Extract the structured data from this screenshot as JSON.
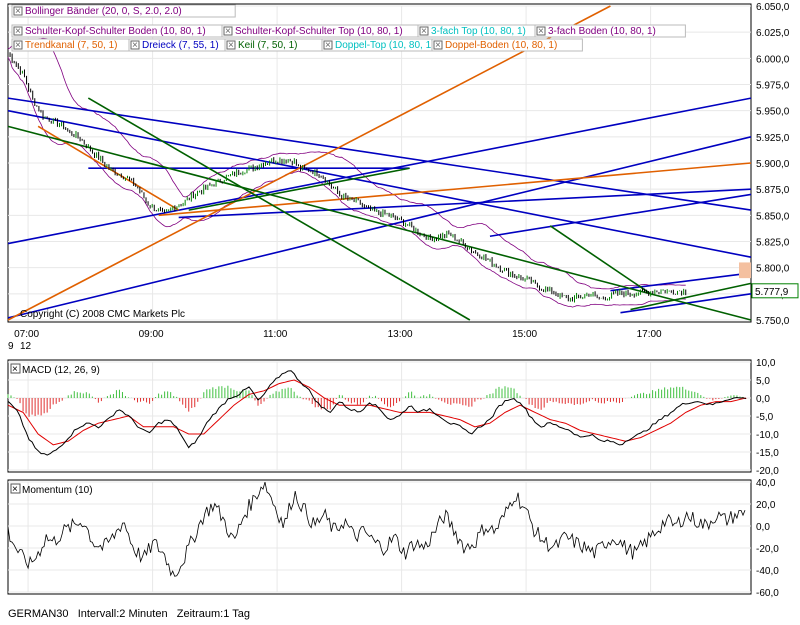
{
  "chart_data": [
    {
      "type": "line",
      "panel": "price",
      "title": "Bollinger Bänder (20, 0, S, 2.0, 2.0)",
      "copyright": "Copyright (C) 2008 CMC Markets Plc",
      "x_ticks": [
        "07:00",
        "09:00",
        "11:00",
        "13:00",
        "15:00",
        "17:00"
      ],
      "x_sub": [
        "9",
        "12"
      ],
      "ylim": [
        5750,
        6050
      ],
      "y_ticks": [
        "5.750,0",
        "5.775,0",
        "5.800,0",
        "5.825,0",
        "5.850,0",
        "5.875,0",
        "5.900,0",
        "5.925,0",
        "5.950,0",
        "5.975,0",
        "6.000,0",
        "6.025,0",
        "6.050,0"
      ],
      "last_value_label": "5.777,9",
      "last_value": 5777.9,
      "legend": [
        {
          "name": "Bollinger Bänder (20, 0, S, 2.0, 2.0)",
          "color": "#800080"
        },
        {
          "name": "Schulter-Kopf-Schulter Boden (10, 80, 1)",
          "color": "#800080"
        },
        {
          "name": "Schulter-Kopf-Schulter Top (10, 80, 1)",
          "color": "#800080"
        },
        {
          "name": "3-fach Top (10, 80, 1)",
          "color": "#00c0c0"
        },
        {
          "name": "3-fach Boden (10, 80, 1)",
          "color": "#800080"
        },
        {
          "name": "Trendkanal (7, 50, 1)",
          "color": "#e06000"
        },
        {
          "name": "Dreieck (7, 55, 1)",
          "color": "#0000c0"
        },
        {
          "name": "Keil (7, 50, 1)",
          "color": "#006000"
        },
        {
          "name": "Doppel-Top (10, 80, 1)",
          "color": "#00c0c0"
        },
        {
          "name": "Doppel-Boden (10, 80, 1)",
          "color": "#e06000"
        }
      ],
      "price_anchors": [
        [
          0,
          6005
        ],
        [
          15,
          5985
        ],
        [
          25,
          5960
        ],
        [
          35,
          5945
        ],
        [
          45,
          5940
        ],
        [
          55,
          5935
        ],
        [
          60,
          5930
        ],
        [
          70,
          5925
        ],
        [
          80,
          5915
        ],
        [
          90,
          5905
        ],
        [
          100,
          5895
        ],
        [
          110,
          5890
        ],
        [
          120,
          5885
        ],
        [
          130,
          5875
        ],
        [
          140,
          5860
        ],
        [
          150,
          5855
        ],
        [
          155,
          5850
        ],
        [
          165,
          5858
        ],
        [
          175,
          5862
        ],
        [
          185,
          5870
        ],
        [
          195,
          5875
        ],
        [
          205,
          5880
        ],
        [
          215,
          5885
        ],
        [
          225,
          5890
        ],
        [
          235,
          5893
        ],
        [
          245,
          5896
        ],
        [
          255,
          5900
        ],
        [
          265,
          5903
        ],
        [
          275,
          5903
        ],
        [
          285,
          5902
        ],
        [
          290,
          5895
        ],
        [
          300,
          5893
        ],
        [
          310,
          5890
        ],
        [
          320,
          5880
        ],
        [
          330,
          5870
        ],
        [
          340,
          5865
        ],
        [
          350,
          5862
        ],
        [
          355,
          5857
        ],
        [
          360,
          5855
        ],
        [
          370,
          5852
        ],
        [
          380,
          5850
        ],
        [
          390,
          5845
        ],
        [
          400,
          5840
        ],
        [
          410,
          5833
        ],
        [
          420,
          5828
        ],
        [
          430,
          5830
        ],
        [
          440,
          5832
        ],
        [
          450,
          5825
        ],
        [
          460,
          5818
        ],
        [
          470,
          5812
        ],
        [
          480,
          5806
        ],
        [
          490,
          5800
        ],
        [
          500,
          5795
        ],
        [
          510,
          5790
        ],
        [
          520,
          5788
        ],
        [
          530,
          5780
        ],
        [
          540,
          5778
        ],
        [
          550,
          5773
        ],
        [
          560,
          5770
        ],
        [
          570,
          5772
        ],
        [
          580,
          5775
        ],
        [
          590,
          5770
        ],
        [
          600,
          5773
        ],
        [
          610,
          5776
        ],
        [
          620,
          5775
        ],
        [
          630,
          5776
        ],
        [
          640,
          5777
        ],
        [
          650,
          5778
        ],
        [
          660,
          5777
        ],
        [
          670,
          5778
        ],
        [
          675,
          5778
        ]
      ],
      "patterns": [
        {
          "color": "#0000c0",
          "from": [
            0,
            5962
          ],
          "to": [
            740,
            5855
          ]
        },
        {
          "color": "#0000c0",
          "from": [
            0,
            5823
          ],
          "to": [
            740,
            5962
          ]
        },
        {
          "color": "#0000c0",
          "from": [
            0,
            5752
          ],
          "to": [
            740,
            5925
          ]
        },
        {
          "color": "#0000c0",
          "from": [
            0,
            5950
          ],
          "to": [
            740,
            5810
          ]
        },
        {
          "color": "#0000c0",
          "from": [
            170,
            5848
          ],
          "to": [
            740,
            5875
          ]
        },
        {
          "color": "#0000c0",
          "from": [
            80,
            5895
          ],
          "to": [
            400,
            5895
          ]
        },
        {
          "color": "#0000c0",
          "from": [
            480,
            5830
          ],
          "to": [
            740,
            5870
          ]
        },
        {
          "color": "#0000c0",
          "from": [
            600,
            5778
          ],
          "to": [
            740,
            5795
          ]
        },
        {
          "color": "#0000c0",
          "from": [
            610,
            5757
          ],
          "to": [
            740,
            5775
          ]
        },
        {
          "color": "#e06000",
          "from": [
            0,
            5750
          ],
          "to": [
            600,
            6050
          ]
        },
        {
          "color": "#e06000",
          "from": [
            150,
            5850
          ],
          "to": [
            740,
            5900
          ]
        },
        {
          "color": "#e06000",
          "from": [
            30,
            5935
          ],
          "to": [
            170,
            5855
          ]
        },
        {
          "color": "#006000",
          "from": [
            0,
            5935
          ],
          "to": [
            740,
            5750
          ]
        },
        {
          "color": "#006000",
          "from": [
            80,
            5962
          ],
          "to": [
            460,
            5750
          ]
        },
        {
          "color": "#006000",
          "from": [
            180,
            5855
          ],
          "to": [
            400,
            5895
          ]
        },
        {
          "color": "#006000",
          "from": [
            540,
            5840
          ],
          "to": [
            640,
            5775
          ]
        },
        {
          "color": "#006000",
          "from": [
            620,
            5760
          ],
          "to": [
            740,
            5785
          ]
        }
      ]
    },
    {
      "type": "line",
      "panel": "macd",
      "title": "MACD (12, 26, 9)",
      "ylim": [
        -20,
        10
      ],
      "y_ticks": [
        "10,0",
        "5,0",
        "0,0",
        "-5,0",
        "-10,0",
        "-15,0",
        "-20,0"
      ],
      "macd_anchors": [
        [
          0,
          -1
        ],
        [
          10,
          -4
        ],
        [
          20,
          -11
        ],
        [
          30,
          -15
        ],
        [
          40,
          -16
        ],
        [
          50,
          -14
        ],
        [
          60,
          -11
        ],
        [
          70,
          -8
        ],
        [
          80,
          -7
        ],
        [
          90,
          -8
        ],
        [
          100,
          -6
        ],
        [
          110,
          -3
        ],
        [
          120,
          -5
        ],
        [
          130,
          -8
        ],
        [
          140,
          -10
        ],
        [
          150,
          -7
        ],
        [
          160,
          -6
        ],
        [
          170,
          -9
        ],
        [
          180,
          -14
        ],
        [
          190,
          -11
        ],
        [
          200,
          -6
        ],
        [
          210,
          -3
        ],
        [
          220,
          0
        ],
        [
          230,
          1
        ],
        [
          240,
          3
        ],
        [
          250,
          -1
        ],
        [
          260,
          3
        ],
        [
          270,
          6
        ],
        [
          280,
          8
        ],
        [
          290,
          5
        ],
        [
          300,
          2
        ],
        [
          310,
          -2
        ],
        [
          320,
          -4
        ],
        [
          330,
          -1
        ],
        [
          340,
          -3
        ],
        [
          350,
          -4
        ],
        [
          360,
          -1
        ],
        [
          370,
          -3
        ],
        [
          380,
          -6
        ],
        [
          390,
          -5
        ],
        [
          400,
          -2
        ],
        [
          410,
          -4
        ],
        [
          420,
          -3
        ],
        [
          430,
          -5
        ],
        [
          440,
          -7
        ],
        [
          450,
          -8
        ],
        [
          460,
          -10
        ],
        [
          470,
          -8
        ],
        [
          480,
          -6
        ],
        [
          490,
          -2
        ],
        [
          500,
          0
        ],
        [
          510,
          -1
        ],
        [
          520,
          -5
        ],
        [
          530,
          -8
        ],
        [
          540,
          -7
        ],
        [
          550,
          -8
        ],
        [
          560,
          -9
        ],
        [
          570,
          -11
        ],
        [
          580,
          -10
        ],
        [
          590,
          -12
        ],
        [
          600,
          -12
        ],
        [
          610,
          -13
        ],
        [
          620,
          -11
        ],
        [
          630,
          -10
        ],
        [
          640,
          -8
        ],
        [
          650,
          -6
        ],
        [
          660,
          -4
        ],
        [
          670,
          -2
        ],
        [
          680,
          -1
        ],
        [
          690,
          -1
        ],
        [
          700,
          -2
        ],
        [
          710,
          -1
        ],
        [
          720,
          0
        ],
        [
          735,
          0
        ]
      ],
      "signal_anchors": [
        [
          0,
          -2
        ],
        [
          15,
          -4
        ],
        [
          30,
          -10
        ],
        [
          45,
          -13
        ],
        [
          60,
          -12
        ],
        [
          75,
          -9
        ],
        [
          90,
          -7
        ],
        [
          105,
          -6
        ],
        [
          120,
          -5
        ],
        [
          135,
          -8
        ],
        [
          150,
          -8
        ],
        [
          165,
          -8
        ],
        [
          180,
          -10
        ],
        [
          195,
          -10
        ],
        [
          210,
          -6
        ],
        [
          225,
          -2
        ],
        [
          240,
          1
        ],
        [
          255,
          2
        ],
        [
          270,
          4
        ],
        [
          285,
          5
        ],
        [
          300,
          3
        ],
        [
          315,
          0
        ],
        [
          330,
          -2
        ],
        [
          345,
          -2
        ],
        [
          360,
          -2
        ],
        [
          375,
          -3
        ],
        [
          390,
          -4
        ],
        [
          405,
          -4
        ],
        [
          420,
          -4
        ],
        [
          435,
          -5
        ],
        [
          450,
          -6
        ],
        [
          465,
          -8
        ],
        [
          480,
          -7
        ],
        [
          495,
          -4
        ],
        [
          510,
          -2
        ],
        [
          525,
          -4
        ],
        [
          540,
          -6
        ],
        [
          555,
          -7
        ],
        [
          570,
          -9
        ],
        [
          585,
          -10
        ],
        [
          600,
          -11
        ],
        [
          615,
          -12
        ],
        [
          630,
          -11
        ],
        [
          645,
          -9
        ],
        [
          660,
          -7
        ],
        [
          675,
          -4
        ],
        [
          690,
          -2
        ],
        [
          705,
          -1
        ],
        [
          720,
          -1
        ],
        [
          735,
          0
        ]
      ]
    },
    {
      "type": "line",
      "panel": "momentum",
      "title": "Momentum (10)",
      "ylim": [
        -60,
        40
      ],
      "y_ticks": [
        "40,0",
        "20,0",
        "0,0",
        "-20,0",
        "-40,0",
        "-60,0"
      ],
      "anchors": [
        [
          0,
          -5
        ],
        [
          8,
          -20
        ],
        [
          15,
          -30
        ],
        [
          22,
          -35
        ],
        [
          30,
          -25
        ],
        [
          38,
          -10
        ],
        [
          45,
          -15
        ],
        [
          55,
          -5
        ],
        [
          65,
          0
        ],
        [
          75,
          5
        ],
        [
          85,
          -15
        ],
        [
          95,
          -20
        ],
        [
          105,
          -10
        ],
        [
          115,
          5
        ],
        [
          125,
          -20
        ],
        [
          135,
          -30
        ],
        [
          145,
          -15
        ],
        [
          155,
          -25
        ],
        [
          165,
          -45
        ],
        [
          175,
          -30
        ],
        [
          185,
          -10
        ],
        [
          195,
          10
        ],
        [
          205,
          20
        ],
        [
          215,
          5
        ],
        [
          225,
          -15
        ],
        [
          235,
          10
        ],
        [
          245,
          25
        ],
        [
          255,
          40
        ],
        [
          265,
          20
        ],
        [
          275,
          0
        ],
        [
          285,
          30
        ],
        [
          295,
          15
        ],
        [
          305,
          0
        ],
        [
          315,
          10
        ],
        [
          325,
          -5
        ],
        [
          335,
          5
        ],
        [
          345,
          -10
        ],
        [
          355,
          -5
        ],
        [
          365,
          -15
        ],
        [
          375,
          -20
        ],
        [
          385,
          -10
        ],
        [
          395,
          -25
        ],
        [
          405,
          -15
        ],
        [
          415,
          -20
        ],
        [
          425,
          -5
        ],
        [
          435,
          10
        ],
        [
          445,
          -5
        ],
        [
          455,
          -20
        ],
        [
          465,
          -15
        ],
        [
          475,
          0
        ],
        [
          485,
          -5
        ],
        [
          495,
          10
        ],
        [
          505,
          30
        ],
        [
          515,
          15
        ],
        [
          525,
          -5
        ],
        [
          535,
          -15
        ],
        [
          545,
          -20
        ],
        [
          555,
          -10
        ],
        [
          565,
          -15
        ],
        [
          575,
          -20
        ],
        [
          585,
          -25
        ],
        [
          595,
          -15
        ],
        [
          605,
          -10
        ],
        [
          615,
          -20
        ],
        [
          625,
          -25
        ],
        [
          635,
          -15
        ],
        [
          645,
          -5
        ],
        [
          655,
          5
        ],
        [
          665,
          0
        ],
        [
          675,
          10
        ],
        [
          685,
          5
        ],
        [
          695,
          0
        ],
        [
          705,
          10
        ],
        [
          715,
          5
        ],
        [
          725,
          10
        ],
        [
          735,
          12
        ]
      ]
    }
  ],
  "footer": {
    "symbol": "GERMAN30",
    "interval": "Intervall:2 Minuten",
    "period": "Zeitraum:1 Tag"
  }
}
